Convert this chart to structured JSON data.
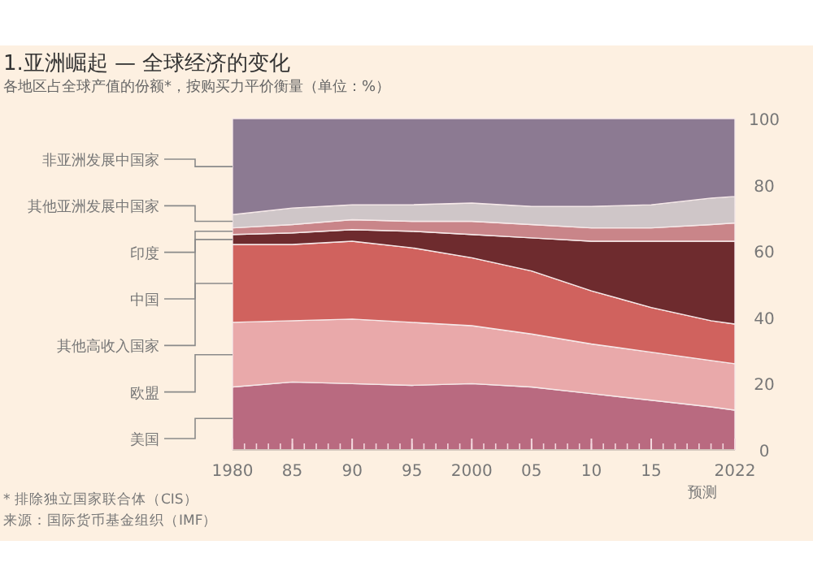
{
  "chart_data": {
    "type": "area",
    "stacked": true,
    "title": "1.亚洲崛起 — 全球经济的变化",
    "subtitle": "各地区占全球产值的份额*，按购买力平价衡量（单位：%）",
    "x": [
      1980,
      1985,
      1990,
      1995,
      2000,
      2005,
      2010,
      2015,
      2020,
      2022
    ],
    "xlim": [
      1980,
      2022
    ],
    "xticks": [
      {
        "value": 1980,
        "label": "1980"
      },
      {
        "value": 1985,
        "label": "85"
      },
      {
        "value": 1990,
        "label": "90"
      },
      {
        "value": 1995,
        "label": "95"
      },
      {
        "value": 2000,
        "label": "2000"
      },
      {
        "value": 2005,
        "label": "05"
      },
      {
        "value": 2010,
        "label": "10"
      },
      {
        "value": 2015,
        "label": "15"
      },
      {
        "value": 2022,
        "label": "2022"
      }
    ],
    "ylim": [
      0,
      100
    ],
    "yticks": [
      0,
      20,
      40,
      60,
      80,
      100
    ],
    "legend": "left",
    "series": [
      {
        "name": "美国",
        "color": "#b96a80",
        "values": [
          19,
          20.5,
          20,
          19.5,
          20,
          19,
          17,
          15,
          13,
          12
        ]
      },
      {
        "name": "欧盟",
        "color": "#e9a9aa",
        "values": [
          19.5,
          18.5,
          19.5,
          19,
          17.5,
          16,
          15,
          14.5,
          14,
          14
        ]
      },
      {
        "name": "其他高收入国家",
        "color": "#d0625e",
        "values": [
          23.5,
          23,
          23.5,
          22.5,
          20.5,
          19,
          16,
          13.5,
          12,
          12
        ]
      },
      {
        "name": "中国",
        "color": "#6e2b2e",
        "values": [
          3,
          3.5,
          3.5,
          5,
          7,
          10,
          15,
          20,
          24,
          25
        ]
      },
      {
        "name": "印度",
        "color": "#c98589",
        "values": [
          2,
          2.5,
          3,
          3,
          4,
          4,
          4,
          4,
          5,
          5.5
        ]
      },
      {
        "name": "其他亚洲发展中国家",
        "color": "#cfc6c8",
        "values": [
          4,
          5,
          4.5,
          5,
          5.5,
          5.5,
          6.5,
          7,
          8,
          8
        ]
      },
      {
        "name": "非亚洲发展中国家",
        "color": "#8c7a92",
        "values": [
          29,
          27,
          26,
          26,
          25.5,
          26.5,
          26.5,
          26,
          24,
          23.5
        ]
      }
    ],
    "annotations": [
      "预测",
      "* 排除独立国家联合体（CIS）",
      "来源：国际货币基金组织（IMF）"
    ]
  }
}
